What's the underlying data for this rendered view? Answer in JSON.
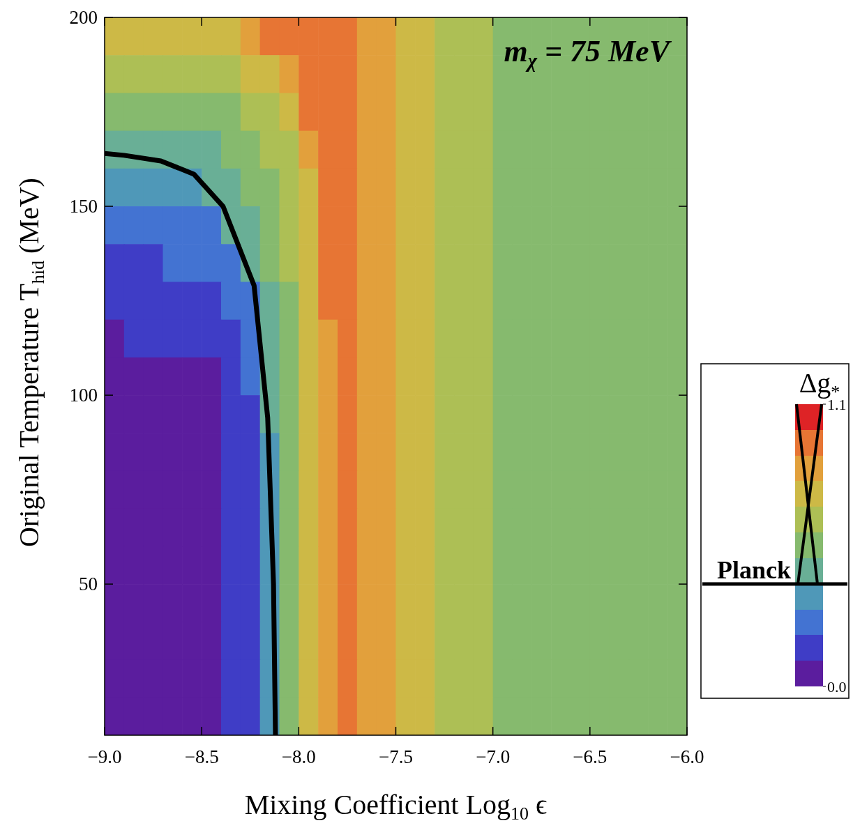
{
  "chart_data": {
    "type": "heatmap",
    "xlabel": "Mixing Coefficient Log$_{10}$ϵ",
    "ylabel": "Original Temperature  T$_{hid}$ (MeV)",
    "clabel": "Δg$_{*}$",
    "annotations": [
      "m$_{χ}$ = 75 MeV",
      "Planck"
    ],
    "xlim": [
      -9,
      -6
    ],
    "xticks": [
      {
        "value": -9,
        "label": "−9.0"
      },
      {
        "value": -8.5,
        "label": "−8.5"
      },
      {
        "value": -8,
        "label": "−8.0"
      },
      {
        "value": -7.5,
        "label": "−7.5"
      },
      {
        "value": -7,
        "label": "−7.0"
      },
      {
        "value": -6.5,
        "label": "−6.5"
      },
      {
        "value": -6,
        "label": "−6.0"
      }
    ],
    "ylim": [
      10,
      200
    ],
    "yticks": [
      50,
      100,
      150,
      200
    ],
    "clim": [
      0,
      1.1
    ],
    "cticks": [
      {
        "value": 0,
        "label": "0.0"
      },
      {
        "value": 1.1,
        "label": "1.1"
      }
    ],
    "colors": [
      "#5b1d9e",
      "#3f3dc6",
      "#4373d2",
      "#4f98b8",
      "#69af96",
      "#86ba6e",
      "#adbf55",
      "#cdb946",
      "#e2a03c",
      "#e77534",
      "#de2326"
    ],
    "x": [
      -8.95,
      -8.85,
      -8.75,
      -8.65,
      -8.55,
      -8.45,
      -8.35,
      -8.25,
      -8.15,
      -8.05,
      -7.95,
      -7.85,
      -7.75,
      -7.65,
      -7.55,
      -7.45,
      -7.35,
      -7.25,
      -7.15,
      -7.05,
      -6.95,
      -6.85,
      -6.75,
      -6.65,
      -6.55,
      -6.45,
      -6.35,
      -6.25,
      -6.15,
      -6.05
    ],
    "y": [
      195,
      185,
      175,
      165,
      155,
      145,
      135,
      125,
      115,
      105,
      95,
      85,
      75,
      65,
      55,
      45,
      35,
      25,
      15
    ],
    "cells": [
      [
        0.75,
        0.75,
        0.75,
        0.75,
        0.75,
        0.75,
        0.75,
        0.85,
        0.95,
        0.95,
        0.95,
        0.95,
        0.95,
        0.85,
        0.85,
        0.75,
        0.75,
        0.65,
        0.65,
        0.65,
        0.55,
        0.55,
        0.55,
        0.55,
        0.55,
        0.55,
        0.55,
        0.55,
        0.55,
        0.55
      ],
      [
        0.65,
        0.65,
        0.65,
        0.65,
        0.65,
        0.65,
        0.65,
        0.75,
        0.75,
        0.85,
        0.95,
        0.95,
        0.95,
        0.85,
        0.85,
        0.75,
        0.75,
        0.65,
        0.65,
        0.65,
        0.55,
        0.55,
        0.55,
        0.55,
        0.55,
        0.55,
        0.55,
        0.55,
        0.55,
        0.55
      ],
      [
        0.55,
        0.55,
        0.55,
        0.55,
        0.55,
        0.55,
        0.55,
        0.65,
        0.65,
        0.75,
        0.95,
        0.95,
        0.95,
        0.85,
        0.85,
        0.75,
        0.75,
        0.65,
        0.65,
        0.65,
        0.55,
        0.55,
        0.55,
        0.55,
        0.55,
        0.55,
        0.55,
        0.55,
        0.55,
        0.55
      ],
      [
        0.45,
        0.45,
        0.45,
        0.45,
        0.45,
        0.45,
        0.55,
        0.55,
        0.65,
        0.65,
        0.85,
        0.95,
        0.95,
        0.85,
        0.85,
        0.75,
        0.75,
        0.65,
        0.65,
        0.65,
        0.55,
        0.55,
        0.55,
        0.55,
        0.55,
        0.55,
        0.55,
        0.55,
        0.55,
        0.55
      ],
      [
        0.35,
        0.35,
        0.35,
        0.35,
        0.35,
        0.45,
        0.45,
        0.55,
        0.55,
        0.65,
        0.75,
        0.95,
        0.95,
        0.85,
        0.85,
        0.75,
        0.75,
        0.65,
        0.65,
        0.65,
        0.55,
        0.55,
        0.55,
        0.55,
        0.55,
        0.55,
        0.55,
        0.55,
        0.55,
        0.55
      ],
      [
        0.25,
        0.25,
        0.25,
        0.25,
        0.25,
        0.25,
        0.45,
        0.45,
        0.55,
        0.65,
        0.75,
        0.95,
        0.95,
        0.85,
        0.85,
        0.75,
        0.75,
        0.65,
        0.65,
        0.65,
        0.55,
        0.55,
        0.55,
        0.55,
        0.55,
        0.55,
        0.55,
        0.55,
        0.55,
        0.55
      ],
      [
        0.15,
        0.15,
        0.15,
        0.25,
        0.25,
        0.25,
        0.25,
        0.45,
        0.55,
        0.65,
        0.75,
        0.95,
        0.95,
        0.85,
        0.85,
        0.75,
        0.75,
        0.65,
        0.65,
        0.65,
        0.55,
        0.55,
        0.55,
        0.55,
        0.55,
        0.55,
        0.55,
        0.55,
        0.55,
        0.55
      ],
      [
        0.15,
        0.15,
        0.15,
        0.15,
        0.15,
        0.15,
        0.25,
        0.25,
        0.45,
        0.55,
        0.75,
        0.95,
        0.95,
        0.85,
        0.85,
        0.75,
        0.75,
        0.65,
        0.65,
        0.65,
        0.55,
        0.55,
        0.55,
        0.55,
        0.55,
        0.55,
        0.55,
        0.55,
        0.55,
        0.55
      ],
      [
        0.05,
        0.15,
        0.15,
        0.15,
        0.15,
        0.15,
        0.15,
        0.25,
        0.45,
        0.55,
        0.75,
        0.85,
        0.95,
        0.85,
        0.85,
        0.75,
        0.75,
        0.65,
        0.65,
        0.65,
        0.55,
        0.55,
        0.55,
        0.55,
        0.55,
        0.55,
        0.55,
        0.55,
        0.55,
        0.55
      ],
      [
        0.05,
        0.05,
        0.05,
        0.05,
        0.05,
        0.05,
        0.15,
        0.25,
        0.45,
        0.55,
        0.75,
        0.85,
        0.95,
        0.85,
        0.85,
        0.75,
        0.75,
        0.65,
        0.65,
        0.65,
        0.55,
        0.55,
        0.55,
        0.55,
        0.55,
        0.55,
        0.55,
        0.55,
        0.55,
        0.55
      ],
      [
        0.05,
        0.05,
        0.05,
        0.05,
        0.05,
        0.05,
        0.15,
        0.15,
        0.45,
        0.55,
        0.75,
        0.85,
        0.95,
        0.85,
        0.85,
        0.75,
        0.75,
        0.65,
        0.65,
        0.65,
        0.55,
        0.55,
        0.55,
        0.55,
        0.55,
        0.55,
        0.55,
        0.55,
        0.55,
        0.55
      ],
      [
        0.05,
        0.05,
        0.05,
        0.05,
        0.05,
        0.05,
        0.15,
        0.15,
        0.35,
        0.55,
        0.75,
        0.85,
        0.95,
        0.85,
        0.85,
        0.75,
        0.75,
        0.65,
        0.65,
        0.65,
        0.55,
        0.55,
        0.55,
        0.55,
        0.55,
        0.55,
        0.55,
        0.55,
        0.55,
        0.55
      ],
      [
        0.05,
        0.05,
        0.05,
        0.05,
        0.05,
        0.05,
        0.15,
        0.15,
        0.35,
        0.55,
        0.75,
        0.85,
        0.95,
        0.85,
        0.85,
        0.75,
        0.75,
        0.65,
        0.65,
        0.65,
        0.55,
        0.55,
        0.55,
        0.55,
        0.55,
        0.55,
        0.55,
        0.55,
        0.55,
        0.55
      ],
      [
        0.05,
        0.05,
        0.05,
        0.05,
        0.05,
        0.05,
        0.15,
        0.15,
        0.35,
        0.55,
        0.75,
        0.85,
        0.95,
        0.85,
        0.85,
        0.75,
        0.75,
        0.65,
        0.65,
        0.65,
        0.55,
        0.55,
        0.55,
        0.55,
        0.55,
        0.55,
        0.55,
        0.55,
        0.55,
        0.55
      ],
      [
        0.05,
        0.05,
        0.05,
        0.05,
        0.05,
        0.05,
        0.15,
        0.15,
        0.35,
        0.55,
        0.75,
        0.85,
        0.95,
        0.85,
        0.85,
        0.75,
        0.75,
        0.65,
        0.65,
        0.65,
        0.55,
        0.55,
        0.55,
        0.55,
        0.55,
        0.55,
        0.55,
        0.55,
        0.55,
        0.55
      ],
      [
        0.05,
        0.05,
        0.05,
        0.05,
        0.05,
        0.05,
        0.15,
        0.15,
        0.35,
        0.55,
        0.75,
        0.85,
        0.95,
        0.85,
        0.85,
        0.75,
        0.75,
        0.65,
        0.65,
        0.65,
        0.55,
        0.55,
        0.55,
        0.55,
        0.55,
        0.55,
        0.55,
        0.55,
        0.55,
        0.55
      ],
      [
        0.05,
        0.05,
        0.05,
        0.05,
        0.05,
        0.05,
        0.15,
        0.15,
        0.35,
        0.55,
        0.75,
        0.85,
        0.95,
        0.85,
        0.85,
        0.75,
        0.75,
        0.65,
        0.65,
        0.65,
        0.55,
        0.55,
        0.55,
        0.55,
        0.55,
        0.55,
        0.55,
        0.55,
        0.55,
        0.55
      ],
      [
        0.05,
        0.05,
        0.05,
        0.05,
        0.05,
        0.05,
        0.15,
        0.15,
        0.35,
        0.55,
        0.75,
        0.85,
        0.95,
        0.85,
        0.85,
        0.75,
        0.75,
        0.65,
        0.65,
        0.65,
        0.55,
        0.55,
        0.55,
        0.55,
        0.55,
        0.55,
        0.55,
        0.55,
        0.55,
        0.55
      ],
      [
        0.05,
        0.05,
        0.05,
        0.05,
        0.05,
        0.05,
        0.15,
        0.15,
        0.35,
        0.55,
        0.75,
        0.85,
        0.95,
        0.85,
        0.85,
        0.75,
        0.75,
        0.65,
        0.65,
        0.65,
        0.55,
        0.55,
        0.55,
        0.55,
        0.55,
        0.55,
        0.55,
        0.55,
        0.55,
        0.55
      ]
    ],
    "series": [
      {
        "type": "line",
        "color": "#000000",
        "x": [
          -9,
          -8.9,
          -8.71,
          -8.54,
          -8.39,
          -8.23,
          -8.16,
          -8.13,
          -8.12
        ],
        "values": [
          164,
          163.5,
          162,
          158.5,
          150,
          129,
          94,
          50,
          10
        ]
      }
    ]
  }
}
